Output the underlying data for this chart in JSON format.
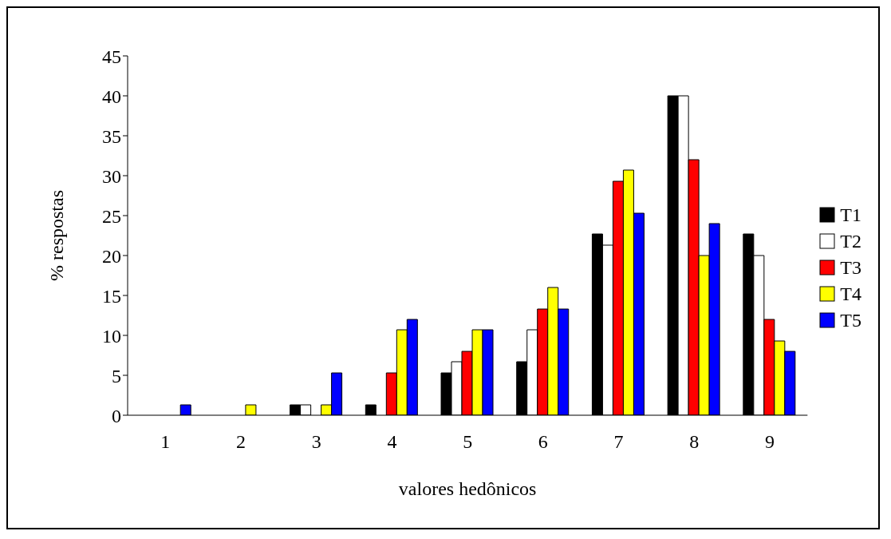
{
  "chart_data": {
    "type": "bar",
    "xlabel": "valores hedônicos",
    "ylabel": "% respostas",
    "categories": [
      "1",
      "2",
      "3",
      "4",
      "5",
      "6",
      "7",
      "8",
      "9"
    ],
    "series": [
      {
        "name": "T1",
        "color": "#000000",
        "values": [
          0,
          0,
          1.3,
          1.3,
          5.3,
          6.7,
          22.7,
          40,
          22.7
        ]
      },
      {
        "name": "T2",
        "color": "#ffffff",
        "values": [
          0,
          0,
          1.3,
          0,
          6.7,
          10.7,
          21.3,
          40,
          20
        ]
      },
      {
        "name": "T3",
        "color": "#ff0000",
        "values": [
          0,
          0,
          0,
          5.3,
          8,
          13.3,
          29.3,
          32,
          12
        ]
      },
      {
        "name": "T4",
        "color": "#ffff00",
        "values": [
          0,
          1.3,
          1.3,
          10.7,
          10.7,
          16,
          30.7,
          20,
          9.3
        ]
      },
      {
        "name": "T5",
        "color": "#0000ff",
        "values": [
          1.3,
          0,
          5.3,
          12,
          10.7,
          13.3,
          25.3,
          24,
          8
        ]
      }
    ],
    "ylim": [
      0,
      45
    ],
    "yticks": [
      0,
      5,
      10,
      15,
      20,
      25,
      30,
      35,
      40,
      45
    ],
    "grid": false,
    "legend": "right"
  }
}
